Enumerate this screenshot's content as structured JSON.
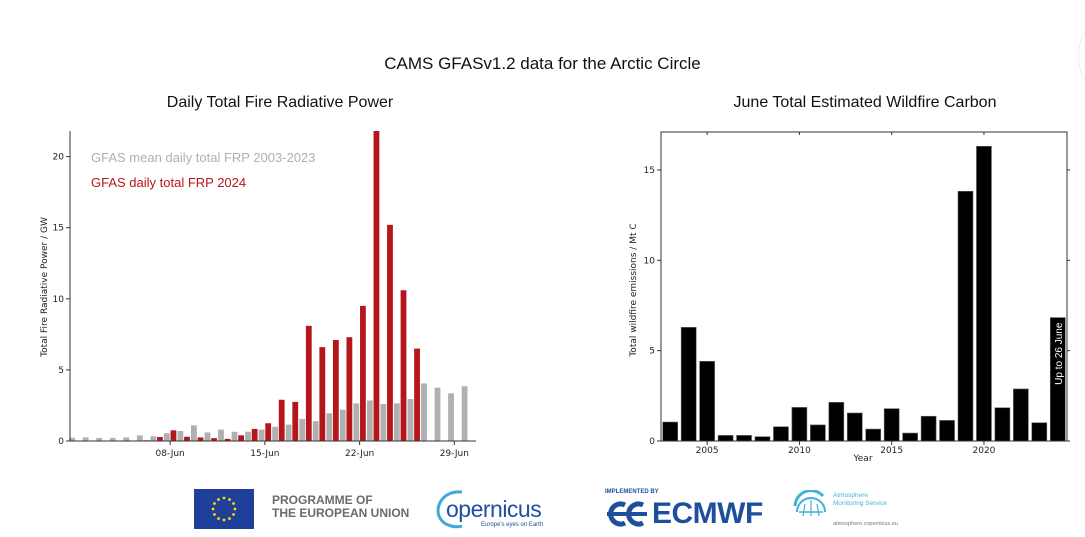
{
  "page": {
    "title": "CAMS GFASv1.2 data for the Arctic Circle"
  },
  "chart_data": [
    {
      "type": "bar",
      "title": "Daily Total Fire Radiative Power",
      "xlabel": "",
      "ylabel": "Total Fire Radiative Power / GW",
      "x_unit": "day of June",
      "x": [
        1,
        2,
        3,
        4,
        5,
        6,
        7,
        8,
        9,
        10,
        11,
        12,
        13,
        14,
        15,
        16,
        17,
        18,
        19,
        20,
        21,
        22,
        23,
        24,
        25,
        26,
        27,
        28,
        29,
        30
      ],
      "xlim": [
        0.6,
        30.6
      ],
      "xticks": [
        8,
        15,
        22,
        29
      ],
      "xtick_labels": [
        "08-Jun",
        "15-Jun",
        "22-Jun",
        "29-Jun"
      ],
      "ylim": [
        0,
        21.8
      ],
      "yticks": [
        0,
        5,
        10,
        15,
        20
      ],
      "ytick_labels": [
        "0",
        "5",
        "10",
        "15",
        "20"
      ],
      "grid": false,
      "legend_position": "top-left",
      "series": [
        {
          "name": "GFAS mean daily total FRP 2003-2023",
          "color": "#b0b0b0",
          "values": [
            0.23,
            0.25,
            0.22,
            0.22,
            0.25,
            0.4,
            0.33,
            0.55,
            0.7,
            1.1,
            0.6,
            0.8,
            0.65,
            0.65,
            0.8,
            1.0,
            1.15,
            1.55,
            1.4,
            1.95,
            2.2,
            2.65,
            2.85,
            2.6,
            2.65,
            2.95,
            4.05,
            3.75,
            3.35,
            3.85
          ]
        },
        {
          "name": "GFAS daily total FRP 2024",
          "color": "#b5161b",
          "values": [
            0,
            0,
            0,
            0,
            0.02,
            0.05,
            0.28,
            0.75,
            0.3,
            0.25,
            0.2,
            0.15,
            0.4,
            0.85,
            1.25,
            2.9,
            2.75,
            8.1,
            6.6,
            7.1,
            7.3,
            9.5,
            21.8,
            15.2,
            10.6,
            6.5,
            null,
            null,
            null,
            null
          ]
        }
      ]
    },
    {
      "type": "bar",
      "title": "June Total Estimated Wildfire Carbon",
      "xlabel": "Year",
      "ylabel": "Total wildfire emissions / Mt C",
      "categories": [
        2003,
        2004,
        2005,
        2006,
        2007,
        2008,
        2009,
        2010,
        2011,
        2012,
        2013,
        2014,
        2015,
        2016,
        2017,
        2018,
        2019,
        2020,
        2021,
        2022,
        2023,
        2024
      ],
      "values": [
        1.05,
        6.29,
        4.41,
        0.31,
        0.31,
        0.24,
        0.79,
        1.86,
        0.89,
        2.14,
        1.55,
        0.66,
        1.79,
        0.44,
        1.37,
        1.14,
        13.82,
        16.31,
        1.84,
        2.88,
        1.01,
        6.83
      ],
      "color": "#000000",
      "xlim": [
        2002.5,
        2024.5
      ],
      "xticks": [
        2005,
        2010,
        2015,
        2020
      ],
      "xtick_labels": [
        "2005",
        "2010",
        "2015",
        "2020"
      ],
      "ylim": [
        0,
        17.1
      ],
      "yticks": [
        0,
        5,
        10,
        15
      ],
      "ytick_labels": [
        "0",
        "5",
        "10",
        "15"
      ],
      "grid": false,
      "annotation": {
        "category": 2024,
        "text": "Up to 26 June"
      }
    }
  ],
  "footer": {
    "eu_line1": "PROGRAMME OF",
    "eu_line2": "THE EUROPEAN UNION",
    "copernicus_word": "opernicus",
    "copernicus_tagline": "Europe's eyes on Earth",
    "ecmwf_implemented": "IMPLEMENTED BY",
    "ecmwf_word": "ECMWF",
    "ams_line1": "Atmosphere",
    "ams_line2": "Monitoring Service",
    "ams_url": "atmosphere.copernicus.eu"
  }
}
